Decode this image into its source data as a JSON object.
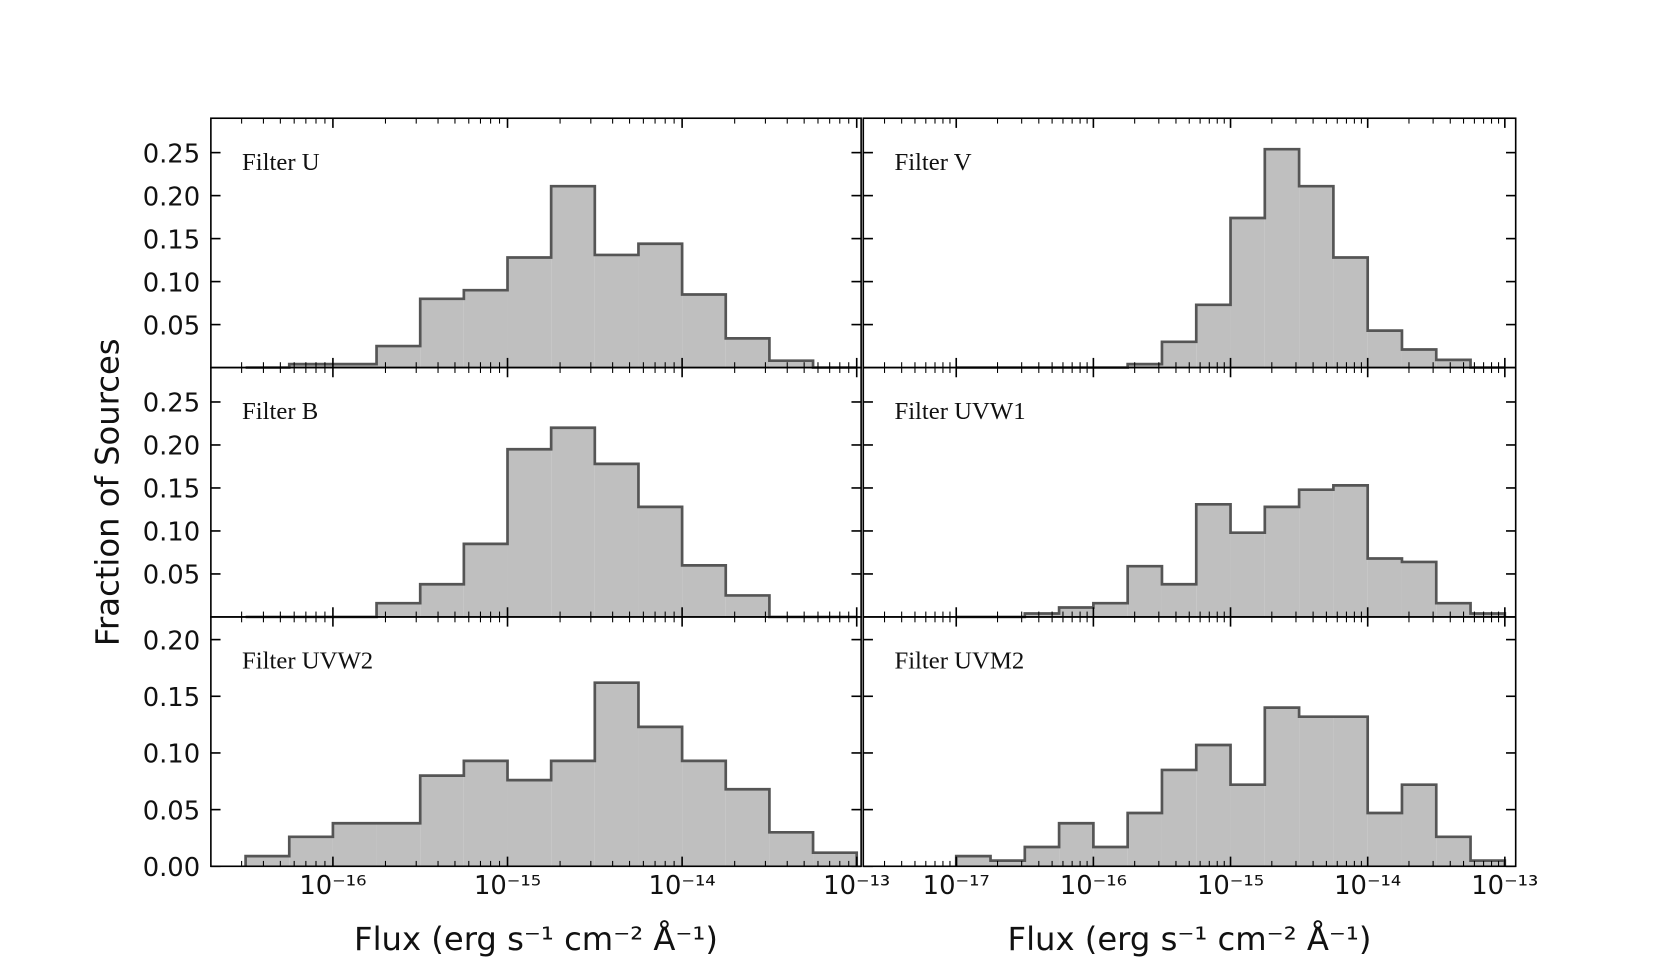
{
  "chart_data": [
    {
      "type": "histogram",
      "annotation": "Filter U",
      "xscale": "log",
      "color": "#bfbfbf",
      "edgecolor": "#555555",
      "bins": [
        3.162e-17,
        5.623e-17,
        1e-16,
        1.778e-16,
        3.162e-16,
        5.623e-16,
        1e-15,
        1.778e-15,
        3.162e-15,
        5.623e-15,
        1e-14,
        1.778e-14,
        3.162e-14,
        5.623e-14,
        1e-13
      ],
      "values": [
        0,
        0.004,
        0.004,
        0.025,
        0.08,
        0.09,
        0.128,
        0.211,
        0.131,
        0.144,
        0.085,
        0.034,
        0.008,
        0
      ],
      "xlim": [
        2e-17,
        1.06e-13
      ],
      "ylim": [
        0,
        0.29
      ],
      "yticks": [
        0.05,
        {
          "value": 0.1,
          "label": "0.10"
        },
        0.15,
        {
          "value": 0.2,
          "label": "0.20"
        },
        0.25
      ]
    },
    {
      "type": "histogram",
      "annotation": "Filter V",
      "xscale": "log",
      "color": "#bfbfbf",
      "edgecolor": "#555555",
      "bins": [
        1e-17,
        1.778e-17,
        3.162e-17,
        5.623e-17,
        1e-16,
        1.778e-16,
        3.162e-16,
        5.623e-16,
        1e-15,
        1.778e-15,
        3.162e-15,
        5.623e-15,
        1e-14,
        1.778e-14,
        3.162e-14,
        5.623e-14,
        1e-13
      ],
      "values": [
        0,
        0,
        0,
        0,
        0,
        0.004,
        0.03,
        0.073,
        0.174,
        0.254,
        0.211,
        0.128,
        0.043,
        0.021,
        0.009,
        0
      ],
      "xlim": [
        2.1e-18,
        1.2e-13
      ],
      "ylim": [
        0,
        0.29
      ]
    },
    {
      "type": "histogram",
      "annotation": "Filter B",
      "ylabel": "Fraction of Sources",
      "xscale": "log",
      "color": "#bfbfbf",
      "edgecolor": "#555555",
      "bins": [
        3.162e-17,
        5.623e-17,
        1e-16,
        1.778e-16,
        3.162e-16,
        5.623e-16,
        1e-15,
        1.778e-15,
        3.162e-15,
        5.623e-15,
        1e-14,
        1.778e-14,
        3.162e-14,
        5.623e-14,
        1e-13
      ],
      "values": [
        0,
        0,
        0,
        0.016,
        0.038,
        0.085,
        0.195,
        0.22,
        0.178,
        0.128,
        0.06,
        0.025,
        0,
        0
      ],
      "xlim": [
        2e-17,
        1.06e-13
      ],
      "ylim": [
        0,
        0.29
      ],
      "yticks": [
        0.05,
        {
          "value": 0.1,
          "label": "0.10"
        },
        0.15,
        {
          "value": 0.2,
          "label": "0.20"
        },
        0.25
      ]
    },
    {
      "type": "histogram",
      "annotation": "Filter UVW1",
      "xscale": "log",
      "color": "#bfbfbf",
      "edgecolor": "#555555",
      "bins": [
        1e-17,
        1.778e-17,
        3.162e-17,
        5.623e-17,
        1e-16,
        1.778e-16,
        3.162e-16,
        5.623e-16,
        1e-15,
        1.778e-15,
        3.162e-15,
        5.623e-15,
        1e-14,
        1.778e-14,
        3.162e-14,
        5.623e-14,
        1e-13
      ],
      "values": [
        0,
        0,
        0.004,
        0.011,
        0.016,
        0.059,
        0.038,
        0.131,
        0.098,
        0.128,
        0.148,
        0.153,
        0.068,
        0.064,
        0.016,
        0.004
      ],
      "xlim": [
        2.1e-18,
        1.2e-13
      ],
      "ylim": [
        0,
        0.29
      ]
    },
    {
      "type": "histogram",
      "annotation": "Filter UVW2",
      "xlabel": "Flux (erg s⁻¹ cm⁻² Å⁻¹)",
      "xscale": "log",
      "color": "#bfbfbf",
      "edgecolor": "#555555",
      "bins": [
        3.162e-17,
        5.623e-17,
        1e-16,
        1.778e-16,
        3.162e-16,
        5.623e-16,
        1e-15,
        1.778e-15,
        3.162e-15,
        5.623e-15,
        1e-14,
        1.778e-14,
        3.162e-14,
        5.623e-14,
        1e-13
      ],
      "values": [
        0.009,
        0.026,
        0.038,
        0.038,
        0.08,
        0.093,
        0.076,
        0.093,
        0.162,
        0.123,
        0.093,
        0.068,
        0.03,
        0.012
      ],
      "xlim": [
        2e-17,
        1.06e-13
      ],
      "ylim": [
        0,
        0.22
      ],
      "xticks": [
        {
          "value": 1e-16,
          "label": "10⁻¹⁶"
        },
        {
          "value": 1e-15,
          "label": "10⁻¹⁵"
        },
        {
          "value": 1e-14,
          "label": "10⁻¹⁴"
        },
        {
          "value": 1e-13,
          "label": "10⁻¹³"
        }
      ],
      "yticks": [
        {
          "value": 0,
          "label": "0.00"
        },
        0.05,
        {
          "value": 0.1,
          "label": "0.10"
        },
        0.15,
        {
          "value": 0.2,
          "label": "0.20"
        }
      ]
    },
    {
      "type": "histogram",
      "annotation": "Filter UVM2",
      "xlabel": "Flux (erg s⁻¹ cm⁻² Å⁻¹)",
      "xscale": "log",
      "color": "#bfbfbf",
      "edgecolor": "#555555",
      "bins": [
        1e-17,
        1.778e-17,
        3.162e-17,
        5.623e-17,
        1e-16,
        1.778e-16,
        3.162e-16,
        5.623e-16,
        1e-15,
        1.778e-15,
        3.162e-15,
        5.623e-15,
        1e-14,
        1.778e-14,
        3.162e-14,
        5.623e-14,
        1e-13
      ],
      "values": [
        0.009,
        0.005,
        0.017,
        0.038,
        0.017,
        0.047,
        0.085,
        0.107,
        0.072,
        0.14,
        0.132,
        0.132,
        0.047,
        0.072,
        0.026,
        0.005
      ],
      "xlim": [
        2.1e-18,
        1.2e-13
      ],
      "ylim": [
        0,
        0.22
      ],
      "xticks": [
        {
          "value": 1e-17,
          "label": "10⁻¹⁷"
        },
        {
          "value": 1e-16,
          "label": "10⁻¹⁶"
        },
        {
          "value": 1e-15,
          "label": "10⁻¹⁵"
        },
        {
          "value": 1e-14,
          "label": "10⁻¹⁴"
        },
        {
          "value": 1e-13,
          "label": "10⁻¹³"
        }
      ]
    }
  ]
}
